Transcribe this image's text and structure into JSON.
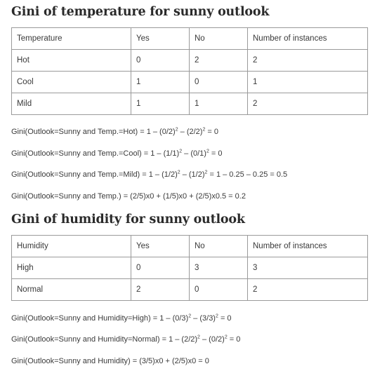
{
  "temperature_section": {
    "heading": "Gini of temperature for sunny outlook",
    "table": {
      "headers": [
        "Temperature",
        "Yes",
        "No",
        "Number of instances"
      ],
      "rows": [
        [
          "Hot",
          "0",
          "2",
          "2"
        ],
        [
          "Cool",
          "1",
          "0",
          "1"
        ],
        [
          "Mild",
          "1",
          "1",
          "2"
        ]
      ]
    },
    "formulas": [
      {
        "pre": "Gini(Outlook=Sunny and Temp.=Hot) = 1 – (0/2)",
        "sup1": "2",
        "mid": " – (2/2)",
        "sup2": "2",
        "post": " = 0"
      },
      {
        "pre": "Gini(Outlook=Sunny and Temp.=Cool) = 1 – (1/1)",
        "sup1": "2",
        "mid": " – (0/1)",
        "sup2": "2",
        "post": " = 0"
      },
      {
        "pre": "Gini(Outlook=Sunny and Temp.=Mild) = 1 – (1/2)",
        "sup1": "2",
        "mid": " – (1/2)",
        "sup2": "2",
        "post": " = 1 – 0.25 – 0.25 = 0.5"
      }
    ],
    "summary": "Gini(Outlook=Sunny and Temp.) = (2/5)x0 + (1/5)x0 + (2/5)x0.5 = 0.2"
  },
  "humidity_section": {
    "heading": "Gini of humidity for sunny outlook",
    "table": {
      "headers": [
        "Humidity",
        "Yes",
        "No",
        "Number of instances"
      ],
      "rows": [
        [
          "High",
          "0",
          "3",
          "3"
        ],
        [
          "Normal",
          "2",
          "0",
          "2"
        ]
      ]
    },
    "formulas": [
      {
        "pre": "Gini(Outlook=Sunny and Humidity=High) = 1 – (0/3)",
        "sup1": "2",
        "mid": " – (3/3)",
        "sup2": "2",
        "post": " = 0"
      },
      {
        "pre": "Gini(Outlook=Sunny and Humidity=Normal) = 1 – (2/2)",
        "sup1": "2",
        "mid": " – (0/2)",
        "sup2": "2",
        "post": " = 0"
      }
    ],
    "summary": "Gini(Outlook=Sunny and Humidity) = (3/5)x0 + (2/5)x0 = 0"
  }
}
